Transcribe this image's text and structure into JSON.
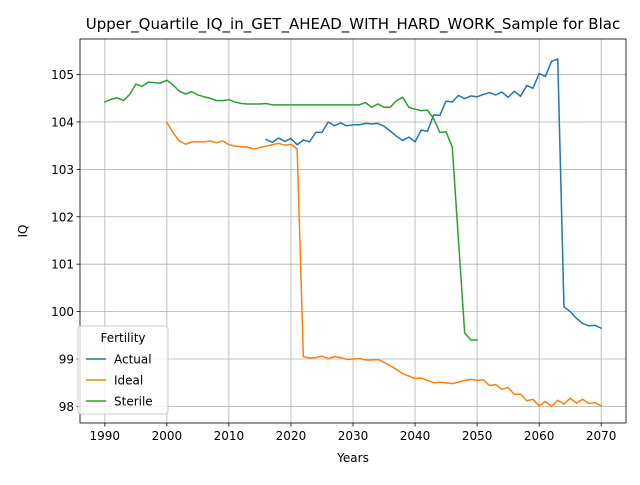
{
  "chart_data": {
    "type": "line",
    "title": "Upper_Quartile_IQ_in_GET_AHEAD_WITH_HARD_WORK_Sample for Blac",
    "xlabel": "Years",
    "ylabel": "IQ",
    "xlim": [
      1986.0,
      2074.0
    ],
    "ylim": [
      97.65,
      105.75
    ],
    "xticks": [
      1990,
      2000,
      2010,
      2020,
      2030,
      2040,
      2050,
      2060,
      2070
    ],
    "yticks": [
      98,
      99,
      100,
      101,
      102,
      103,
      104,
      105
    ],
    "grid": true,
    "legend": {
      "title": "Fertility",
      "location": "lower-left"
    },
    "series": [
      {
        "name": "Actual",
        "color": "#1f77b4",
        "x": [
          2016,
          2017,
          2018,
          2019,
          2020,
          2021,
          2022,
          2023,
          2024,
          2025,
          2026,
          2027,
          2028,
          2029,
          2030,
          2031,
          2032,
          2033,
          2034,
          2035,
          2036,
          2037,
          2038,
          2039,
          2040,
          2041,
          2042,
          2043,
          2044,
          2045,
          2046,
          2047,
          2048,
          2049,
          2050,
          2051,
          2052,
          2053,
          2054,
          2055,
          2056,
          2057,
          2058,
          2059,
          2060,
          2061,
          2062,
          2063,
          2064,
          2065,
          2066,
          2067,
          2068,
          2069,
          2070
        ],
        "y": [
          103.63,
          103.57,
          103.66,
          103.59,
          103.65,
          103.52,
          103.62,
          103.58,
          103.78,
          103.78,
          104.0,
          103.92,
          103.98,
          103.92,
          103.94,
          103.94,
          103.97,
          103.96,
          103.97,
          103.91,
          103.81,
          103.7,
          103.61,
          103.68,
          103.58,
          103.83,
          103.8,
          104.15,
          104.14,
          104.44,
          104.42,
          104.56,
          104.49,
          104.55,
          104.53,
          104.58,
          104.62,
          104.57,
          104.63,
          104.52,
          104.65,
          104.54,
          104.77,
          104.71,
          105.02,
          104.96,
          105.28,
          105.33,
          100.1,
          100.0,
          99.86,
          99.75,
          99.7,
          99.71,
          99.65
        ]
      },
      {
        "name": "Ideal",
        "color": "#ff7f0e",
        "x": [
          2000,
          2001,
          2002,
          2003,
          2004,
          2005,
          2006,
          2007,
          2008,
          2009,
          2010,
          2011,
          2012,
          2013,
          2014,
          2015,
          2016,
          2017,
          2018,
          2019,
          2020,
          2021,
          2022,
          2023,
          2024,
          2025,
          2026,
          2027,
          2028,
          2029,
          2030,
          2031,
          2032,
          2033,
          2034,
          2035,
          2036,
          2037,
          2038,
          2039,
          2040,
          2041,
          2042,
          2043,
          2044,
          2045,
          2046,
          2047,
          2048,
          2049,
          2050,
          2051,
          2052,
          2053,
          2054,
          2055,
          2056,
          2057,
          2058,
          2059,
          2060,
          2061,
          2062,
          2063,
          2064,
          2065,
          2066,
          2067,
          2068,
          2069,
          2070
        ],
        "y": [
          103.99,
          103.77,
          103.6,
          103.53,
          103.58,
          103.58,
          103.58,
          103.6,
          103.56,
          103.6,
          103.52,
          103.49,
          103.48,
          103.47,
          103.43,
          103.46,
          103.49,
          103.52,
          103.55,
          103.51,
          103.53,
          103.43,
          99.05,
          99.02,
          99.03,
          99.06,
          99.01,
          99.05,
          99.03,
          98.99,
          99.0,
          99.01,
          98.98,
          98.98,
          98.99,
          98.93,
          98.86,
          98.78,
          98.69,
          98.64,
          98.59,
          98.6,
          98.55,
          98.5,
          98.51,
          98.5,
          98.48,
          98.51,
          98.55,
          98.57,
          98.55,
          98.56,
          98.44,
          98.46,
          98.36,
          98.4,
          98.25,
          98.26,
          98.12,
          98.15,
          98.01,
          98.1,
          98.0,
          98.13,
          98.05,
          98.17,
          98.07,
          98.15,
          98.06,
          98.08,
          98.01
        ]
      },
      {
        "name": "Sterile",
        "color": "#2ca02c",
        "x": [
          1990,
          1991,
          1992,
          1993,
          1994,
          1995,
          1996,
          1997,
          1998,
          1999,
          2000,
          2001,
          2002,
          2003,
          2004,
          2005,
          2006,
          2007,
          2008,
          2009,
          2010,
          2011,
          2012,
          2013,
          2014,
          2015,
          2016,
          2017,
          2018,
          2019,
          2020,
          2021,
          2022,
          2023,
          2024,
          2025,
          2026,
          2027,
          2028,
          2029,
          2030,
          2031,
          2032,
          2033,
          2034,
          2035,
          2036,
          2037,
          2038,
          2039,
          2040,
          2041,
          2042,
          2043,
          2044,
          2045,
          2046,
          2047,
          2048,
          2049,
          2050
        ],
        "y": [
          104.42,
          104.48,
          104.51,
          104.45,
          104.58,
          104.8,
          104.75,
          104.84,
          104.83,
          104.82,
          104.88,
          104.78,
          104.65,
          104.59,
          104.64,
          104.57,
          104.53,
          104.5,
          104.45,
          104.45,
          104.47,
          104.42,
          104.39,
          104.38,
          104.38,
          104.38,
          104.39,
          104.36,
          104.36,
          104.36,
          104.36,
          104.36,
          104.36,
          104.36,
          104.36,
          104.36,
          104.36,
          104.36,
          104.36,
          104.36,
          104.36,
          104.36,
          104.41,
          104.31,
          104.38,
          104.31,
          104.31,
          104.45,
          104.52,
          104.31,
          104.27,
          104.24,
          104.25,
          104.07,
          103.78,
          103.79,
          103.47,
          101.5,
          99.55,
          99.4,
          99.4
        ]
      }
    ]
  }
}
